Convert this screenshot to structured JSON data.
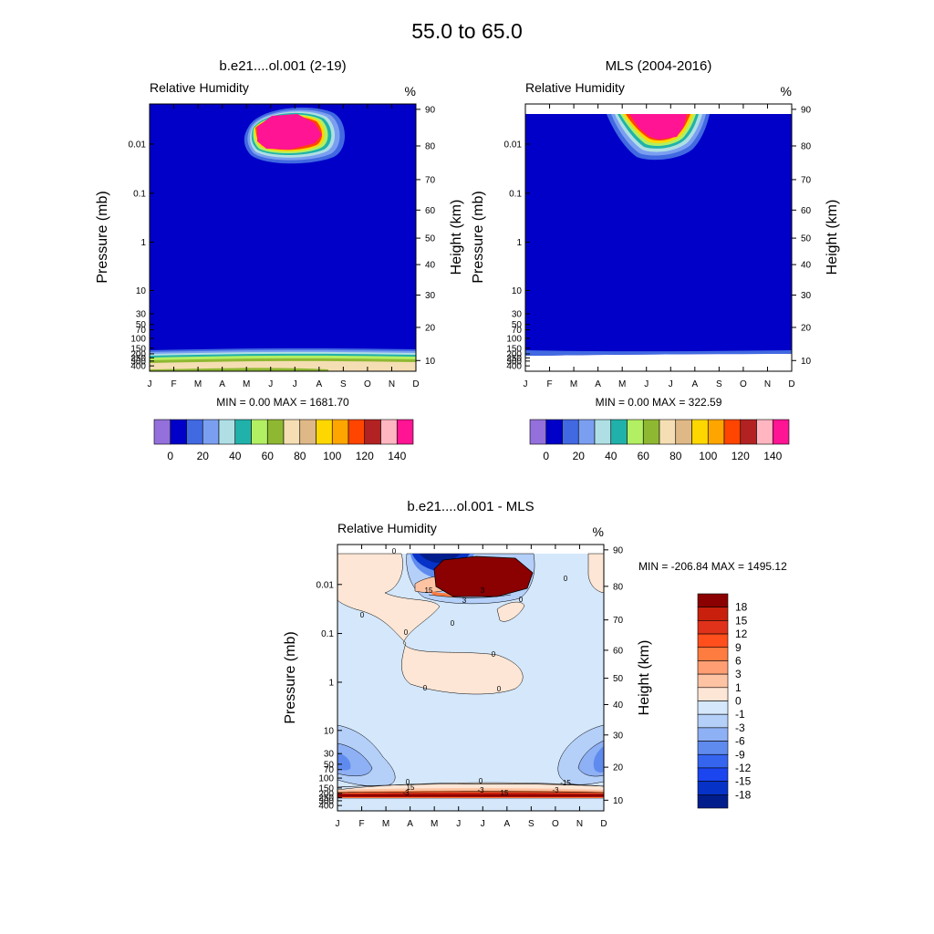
{
  "main_title": "55.0 to  65.0",
  "chart_data": [
    {
      "type": "heatmap",
      "title": "b.e21....ol.001 (2-19)",
      "left_label": "Relative Humidity",
      "right_label": "%",
      "ylabel": "Pressure (mb)",
      "ylabel_right": "Height (km)",
      "x_ticks": [
        "J",
        "F",
        "M",
        "A",
        "M",
        "J",
        "J",
        "A",
        "S",
        "O",
        "N",
        "D"
      ],
      "y_ticks": [
        "0.01",
        "0.1",
        "1",
        "10",
        "30",
        "50",
        "70",
        "100",
        "150",
        "200",
        "250",
        "300",
        "400"
      ],
      "y_ticks_right": [
        "90",
        "80",
        "70",
        "60",
        "50",
        "40",
        "30",
        "20",
        "10"
      ],
      "stats": "MIN =   0.00  MAX = 1681.70",
      "colorbar": {
        "orientation": "horizontal",
        "labels": [
          "0",
          "20",
          "40",
          "60",
          "80",
          "100",
          "120",
          "140"
        ],
        "colors": [
          "#9370db",
          "#0000c8",
          "#4169e1",
          "#7b9ff0",
          "#afdfe4",
          "#20b2aa",
          "#b2ef63",
          "#8fb832",
          "#f5deb3",
          "#deb887",
          "#ffd700",
          "#ffa500",
          "#ff4500",
          "#b22222",
          "#ffb6c1",
          "#ff1493"
        ]
      },
      "features": {
        "background": "#0000c8",
        "blob_peak": "#ff1493",
        "lower_colors": [
          "#4169e1",
          "#7b9ff0",
          "#afdfe4",
          "#20b2aa",
          "#b2ef63",
          "#8fb832",
          "#f5deb3",
          "#deb887"
        ]
      }
    },
    {
      "type": "heatmap",
      "title": "MLS (2004-2016)",
      "left_label": "Relative Humidity",
      "right_label": "%",
      "ylabel": "Pressure (mb)",
      "ylabel_right": "Height (km)",
      "x_ticks": [
        "J",
        "F",
        "M",
        "A",
        "M",
        "J",
        "J",
        "A",
        "S",
        "O",
        "N",
        "D"
      ],
      "y_ticks": [
        "0.01",
        "0.1",
        "1",
        "10",
        "30",
        "50",
        "70",
        "100",
        "150",
        "200",
        "250",
        "300",
        "400"
      ],
      "y_ticks_right": [
        "90",
        "80",
        "70",
        "60",
        "50",
        "40",
        "30",
        "20",
        "10"
      ],
      "stats": "MIN =   0.00  MAX = 322.59",
      "colorbar": {
        "orientation": "horizontal",
        "labels": [
          "0",
          "20",
          "40",
          "60",
          "80",
          "100",
          "120",
          "140"
        ],
        "colors": [
          "#9370db",
          "#0000c8",
          "#4169e1",
          "#7b9ff0",
          "#afdfe4",
          "#20b2aa",
          "#b2ef63",
          "#8fb832",
          "#f5deb3",
          "#deb887",
          "#ffd700",
          "#ffa500",
          "#ff4500",
          "#b22222",
          "#ffb6c1",
          "#ff1493"
        ]
      },
      "features": {
        "background": "#0000c8",
        "blob_peak": "#ff1493"
      }
    },
    {
      "type": "heatmap",
      "title": "b.e21....ol.001 - MLS",
      "left_label": "Relative Humidity",
      "right_label": "%",
      "ylabel": "Pressure (mb)",
      "ylabel_right": "Height (km)",
      "x_ticks": [
        "J",
        "F",
        "M",
        "A",
        "M",
        "J",
        "J",
        "A",
        "S",
        "O",
        "N",
        "D"
      ],
      "y_ticks": [
        "0.01",
        "0.1",
        "1",
        "10",
        "30",
        "50",
        "70",
        "100",
        "150",
        "200",
        "250",
        "300",
        "400"
      ],
      "y_ticks_right": [
        "90",
        "80",
        "70",
        "60",
        "50",
        "40",
        "30",
        "20",
        "10"
      ],
      "stats": "MIN = -206.84  MAX = 1495.12",
      "colorbar": {
        "orientation": "vertical",
        "labels": [
          "18",
          "15",
          "12",
          "9",
          "6",
          "3",
          "1",
          "0",
          "-1",
          "-3",
          "-6",
          "-9",
          "-12",
          "-15",
          "-18"
        ],
        "colors": [
          "#8b0000",
          "#c8200c",
          "#e0321a",
          "#ff4f1c",
          "#ff7c40",
          "#ff9e73",
          "#fdc3a3",
          "#fde6d5",
          "#d4e7fb",
          "#b4cff8",
          "#8eb0f4",
          "#5f8bef",
          "#3565ef",
          "#1b45ef",
          "#0632c8",
          "#011d8c"
        ]
      },
      "contour_labels": [
        "0",
        "0",
        "0",
        "0",
        "0",
        "0",
        "0",
        "0",
        "0",
        "0",
        "0",
        "-3",
        "-3",
        "-3",
        "3",
        "3",
        "15",
        "-15",
        "15",
        "15"
      ],
      "features": {
        "background": "#d4e7fb",
        "blob_peak": "#8b0000"
      }
    }
  ]
}
